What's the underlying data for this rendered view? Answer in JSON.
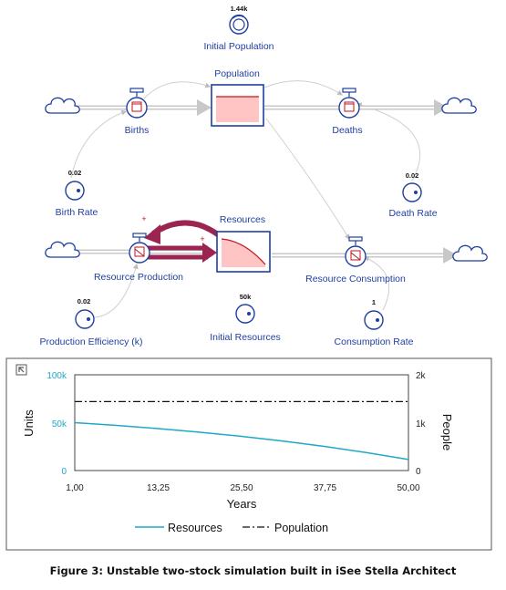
{
  "diagram": {
    "initial_population": {
      "label": "Initial Population",
      "value": "1.44k"
    },
    "population": {
      "label": "Population"
    },
    "births": {
      "label": "Births"
    },
    "deaths": {
      "label": "Deaths"
    },
    "birth_rate": {
      "label": "Birth Rate",
      "value": "0.02"
    },
    "death_rate": {
      "label": "Death Rate",
      "value": "0.02"
    },
    "resources": {
      "label": "Resources"
    },
    "resource_production": {
      "label": "Resource Production"
    },
    "resource_consumption": {
      "label": "Resource Consumption"
    },
    "production_efficiency": {
      "label": "Production Efficiency (k)",
      "value": "0.02"
    },
    "initial_resources": {
      "label": "Initial Resources",
      "value": "50k"
    },
    "consumption_rate": {
      "label": "Consumption Rate",
      "value": "1"
    },
    "loop_polarity": "+",
    "colors": {
      "element": "#1f3fa0",
      "stock_fill": "#ffc4c4",
      "stock_line": "#c0161b",
      "loop": "#9b2450"
    }
  },
  "chart_data": {
    "type": "line",
    "x": [
      1,
      7.125,
      13.25,
      19.375,
      25.5,
      31.625,
      37.75,
      43.875,
      50
    ],
    "series": [
      {
        "name": "Resources",
        "axis": "left",
        "style": "solid",
        "color": "#1fa8c9",
        "values": [
          50000,
          47100,
          43800,
          40000,
          35700,
          30700,
          25100,
          18700,
          11500
        ]
      },
      {
        "name": "Population",
        "axis": "right",
        "style": "dash-dot",
        "color": "#111111",
        "values": [
          1440,
          1440,
          1440,
          1440,
          1440,
          1440,
          1440,
          1440,
          1440
        ]
      }
    ],
    "xlabel": "Years",
    "ylabel_left": "Units",
    "ylabel_right": "People",
    "xlim": [
      1,
      50
    ],
    "ylim_left": [
      0,
      100000
    ],
    "ylim_right": [
      0,
      2000
    ],
    "xticks": [
      "1,00",
      "13,25",
      "25,50",
      "37,75",
      "50,00"
    ],
    "yticks_left": [
      "0",
      "50k",
      "100k"
    ],
    "yticks_right": [
      "0",
      "1k",
      "2k"
    ],
    "legend_position": "bottom",
    "grid": false
  },
  "caption": "Figure 3: Unstable two-stock simulation built in iSee Stella Architect"
}
